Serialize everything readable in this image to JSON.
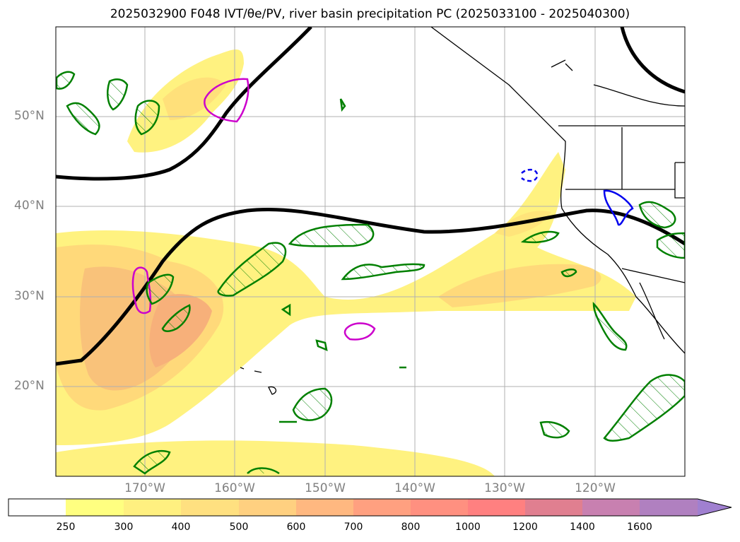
{
  "title": "2025032900 F048 IVT/θe/PV, river basin precipitation PC (2025033100 - 2025040300)",
  "map": {
    "lat_ticks": [
      "50°N",
      "40°N",
      "30°N",
      "20°N"
    ],
    "lon_ticks": [
      "170°W",
      "160°W",
      "150°W",
      "140°W",
      "130°W",
      "120°W"
    ],
    "extent": {
      "lon_min": -180,
      "lon_max": -110,
      "lat_min": 10,
      "lat_max": 60
    }
  },
  "colorbar": {
    "levels": [
      "250",
      "300",
      "400",
      "500",
      "600",
      "700",
      "800",
      "1000",
      "1200",
      "1400",
      "1600"
    ],
    "colors": [
      "#ffffff",
      "#ffff80",
      "#ffee80",
      "#ffdd80",
      "#ffcc80",
      "#ffb380",
      "#ffa080",
      "#ff8c80",
      "#ee8090",
      "#d080a0",
      "#c080c0",
      "#a080d0"
    ]
  },
  "layers": {
    "ivt_fill": "#ffef7a",
    "ivt_mid": "#ffd27a",
    "ivt_high": "#f7b07a",
    "theta_e_contour": "#000000",
    "pv_contour_positive": "#cc00cc",
    "pv_contour_negative": "#0000ee",
    "precip_contour": "#008000"
  }
}
